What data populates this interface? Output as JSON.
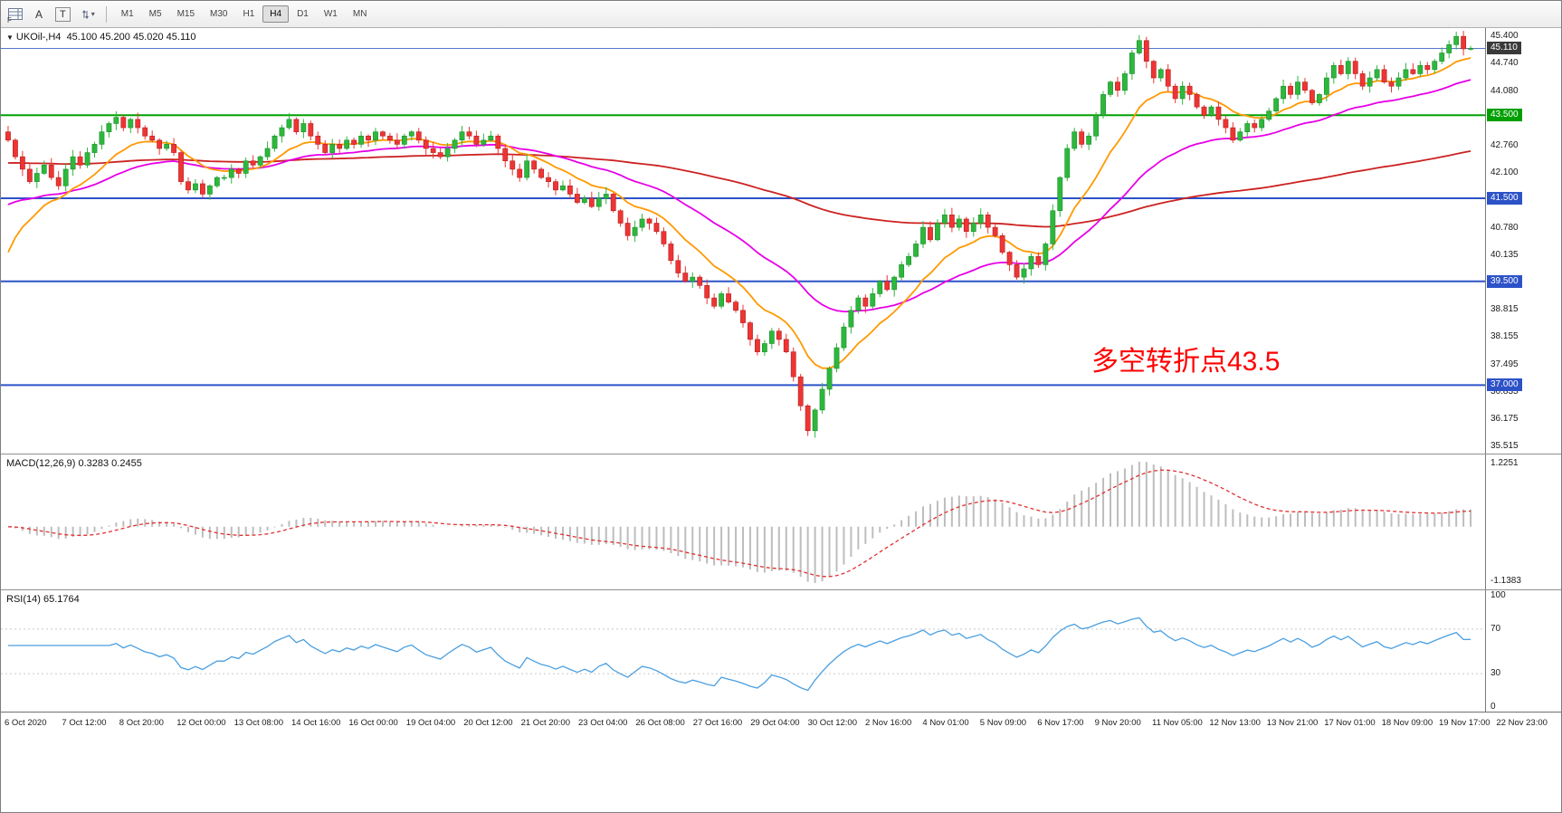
{
  "toolbar": {
    "corner_label": "F",
    "a_button": "A",
    "t_button": "T",
    "timeframes": [
      "M1",
      "M5",
      "M15",
      "M30",
      "H1",
      "H4",
      "D1",
      "W1",
      "MN"
    ],
    "active_timeframe": "H4"
  },
  "chart_data": {
    "type": "candlestick",
    "symbol_label": "UKOil-,H4",
    "ohlc_label": "45.100 45.200 45.020 45.110",
    "open": 45.1,
    "high": 45.2,
    "low": 45.02,
    "close": 45.11,
    "price_range": {
      "min": 35.35,
      "max": 45.6
    },
    "closes": [
      42.9,
      42.5,
      42.2,
      41.9,
      42.1,
      42.3,
      42.0,
      41.8,
      42.2,
      42.5,
      42.3,
      42.6,
      42.8,
      43.1,
      43.3,
      43.45,
      43.2,
      43.4,
      43.2,
      43.0,
      42.9,
      42.7,
      42.8,
      42.6,
      41.9,
      41.7,
      41.85,
      41.6,
      41.8,
      42.0,
      42.0,
      42.2,
      42.1,
      42.4,
      42.3,
      42.5,
      42.7,
      43.0,
      43.2,
      43.4,
      43.1,
      43.3,
      43.0,
      42.8,
      42.6,
      42.8,
      42.7,
      42.9,
      42.8,
      43.0,
      42.9,
      43.1,
      43.0,
      42.9,
      42.8,
      43.0,
      43.1,
      42.9,
      42.7,
      42.6,
      42.5,
      42.7,
      42.9,
      43.1,
      43.0,
      42.8,
      42.9,
      43.0,
      42.7,
      42.4,
      42.2,
      42.0,
      42.4,
      42.2,
      42.0,
      41.9,
      41.7,
      41.8,
      41.6,
      41.4,
      41.5,
      41.3,
      41.5,
      41.6,
      41.2,
      40.9,
      40.6,
      40.8,
      41.0,
      40.9,
      40.7,
      40.4,
      40.0,
      39.7,
      39.5,
      39.6,
      39.4,
      39.1,
      38.9,
      39.2,
      39.0,
      38.8,
      38.5,
      38.1,
      37.8,
      38.0,
      38.3,
      38.1,
      37.8,
      37.2,
      36.5,
      35.9,
      36.4,
      36.9,
      37.4,
      37.9,
      38.4,
      38.8,
      39.1,
      38.9,
      39.2,
      39.5,
      39.3,
      39.6,
      39.9,
      40.1,
      40.4,
      40.8,
      40.5,
      40.9,
      41.1,
      40.8,
      41.0,
      40.7,
      40.9,
      41.1,
      40.8,
      40.6,
      40.2,
      39.9,
      39.6,
      39.8,
      40.1,
      39.9,
      40.4,
      41.2,
      42.0,
      42.7,
      43.1,
      42.8,
      43.0,
      43.5,
      44.0,
      44.3,
      44.1,
      44.5,
      45.0,
      45.3,
      44.8,
      44.4,
      44.6,
      44.2,
      43.9,
      44.2,
      44.0,
      43.7,
      43.5,
      43.7,
      43.4,
      43.2,
      42.9,
      43.1,
      43.3,
      43.2,
      43.4,
      43.6,
      43.9,
      44.2,
      44.0,
      44.3,
      44.1,
      43.8,
      44.0,
      44.4,
      44.7,
      44.5,
      44.8,
      44.5,
      44.2,
      44.4,
      44.6,
      44.3,
      44.2,
      44.4,
      44.6,
      44.5,
      44.7,
      44.6,
      44.8,
      45.0,
      45.2,
      45.4,
      45.1,
      45.11
    ],
    "y_axis_labels": [
      45.4,
      44.74,
      44.08,
      42.76,
      42.1,
      40.78,
      40.135,
      38.815,
      38.155,
      37.495,
      36.835,
      36.175,
      35.515
    ],
    "horizontal_lines": [
      {
        "value": 43.5,
        "label": "43.500",
        "color": "#00a000",
        "width": 2
      },
      {
        "value": 41.5,
        "label": "41.500",
        "color": "#2d52c8",
        "width": 2
      },
      {
        "value": 39.5,
        "label": "39.500",
        "color": "#2d52c8",
        "width": 2
      },
      {
        "value": 37.0,
        "label": "37.000",
        "color": "#2d52c8",
        "width": 2
      }
    ],
    "current_price": {
      "value": 45.11,
      "label": "45.110",
      "line_color": "#5577cc",
      "badge_color": "#3a3a3a"
    },
    "annotation": {
      "text": "多空转折点43.5",
      "color": "#ff0000"
    },
    "colors": {
      "bull": "#2db83c",
      "bear": "#ef3434",
      "ma_fast": "#ff9900",
      "ma_mid": "#e600e6",
      "ma_slow": "#cc2222"
    },
    "indicators": {
      "macd": {
        "header": "MACD(12,26,9) 0.3283 0.2455",
        "fast": 12,
        "slow": 26,
        "signal": 9,
        "axis_labels": [
          "1.2251",
          "-1.1383"
        ],
        "hist_color": "#bdbdbd",
        "signal_color": "#e03030"
      },
      "rsi": {
        "header": "RSI(14) 65.1764",
        "period": 14,
        "axis_labels": [
          100,
          70,
          30,
          0
        ],
        "levels": [
          70,
          30
        ],
        "line_color": "#4a9fe0"
      }
    },
    "time_labels": [
      "6 Oct 2020",
      "7 Oct 12:00",
      "8 Oct 20:00",
      "12 Oct 00:00",
      "13 Oct 08:00",
      "14 Oct 16:00",
      "16 Oct 00:00",
      "19 Oct 04:00",
      "20 Oct 12:00",
      "21 Oct 20:00",
      "23 Oct 04:00",
      "26 Oct 08:00",
      "27 Oct 16:00",
      "29 Oct 04:00",
      "30 Oct 12:00",
      "2 Nov 16:00",
      "4 Nov 01:00",
      "5 Nov 09:00",
      "6 Nov 17:00",
      "9 Nov 20:00",
      "11 Nov 05:00",
      "12 Nov 13:00",
      "13 Nov 21:00",
      "17 Nov 01:00",
      "18 Nov 09:00",
      "19 Nov 17:00",
      "22 Nov 23:00"
    ]
  }
}
